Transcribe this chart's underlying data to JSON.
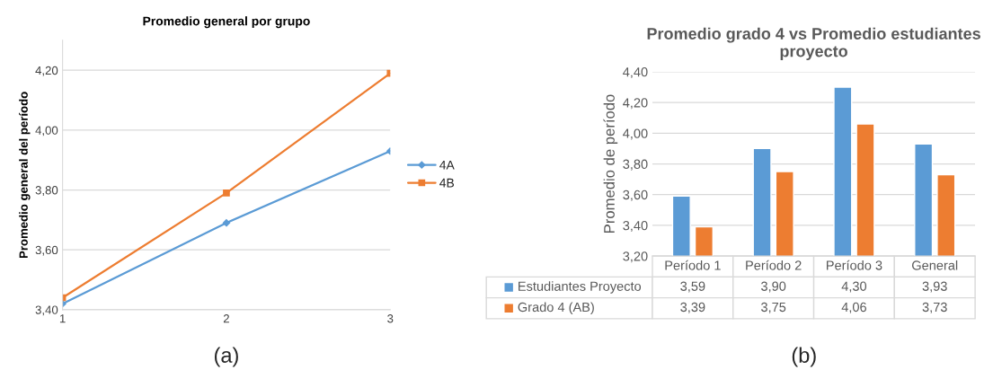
{
  "chart_data": [
    {
      "type": "line",
      "title": "Promedio general por grupo",
      "ylabel": "Promedio general del período",
      "x": [
        1,
        2,
        3
      ],
      "xlim": [
        1,
        3
      ],
      "xticks": [
        1,
        2,
        3
      ],
      "ylim": [
        3.4,
        4.3
      ],
      "yticks": [
        {
          "value": 3.4,
          "label": "3,40"
        },
        {
          "value": 3.6,
          "label": "3,60"
        },
        {
          "value": 3.8,
          "label": "3,80"
        },
        {
          "value": 4.0,
          "label": "4,00"
        },
        {
          "value": 4.2,
          "label": "4,20"
        }
      ],
      "grid": "y",
      "legend": "right",
      "series": [
        {
          "name": "4A",
          "color": "#5b9bd5",
          "marker": "diamond",
          "values": [
            3.42,
            3.69,
            3.93
          ]
        },
        {
          "name": "4B",
          "color": "#ed7d31",
          "marker": "square",
          "values": [
            3.44,
            3.79,
            4.19
          ]
        }
      ],
      "annotations": [
        "(a)"
      ]
    },
    {
      "type": "bar",
      "title": "Promedio grado 4 vs Promedio estudiantes\nproyecto",
      "ylabel": "Promedio de período",
      "legend": "bottom left",
      "categories": [
        "Período 1",
        "Período 2",
        "Período 3",
        "General"
      ],
      "ylim": [
        3.2,
        4.4
      ],
      "yticks": [
        {
          "value": 3.2,
          "label": "3,20"
        },
        {
          "value": 3.4,
          "label": "3,40"
        },
        {
          "value": 3.6,
          "label": "3,60"
        },
        {
          "value": 3.8,
          "label": "3,80"
        },
        {
          "value": 4.0,
          "label": "4,00"
        },
        {
          "value": 4.2,
          "label": "4,20"
        },
        {
          "value": 4.4,
          "label": "4,40"
        }
      ],
      "grid": "y",
      "series": [
        {
          "name": "Estudiantes Proyecto",
          "color": "#5b9bd5",
          "values": [
            3.59,
            3.9,
            4.3,
            3.93
          ],
          "value_labels": [
            "3,59",
            "3,90",
            "4,30",
            "3,93"
          ]
        },
        {
          "name": "Grado 4 (AB)",
          "color": "#ed7d31",
          "values": [
            3.39,
            3.75,
            4.06,
            3.73
          ],
          "value_labels": [
            "3,39",
            "3,75",
            "4,06",
            "3,73"
          ]
        }
      ],
      "annotations": [
        "(b)"
      ]
    }
  ]
}
